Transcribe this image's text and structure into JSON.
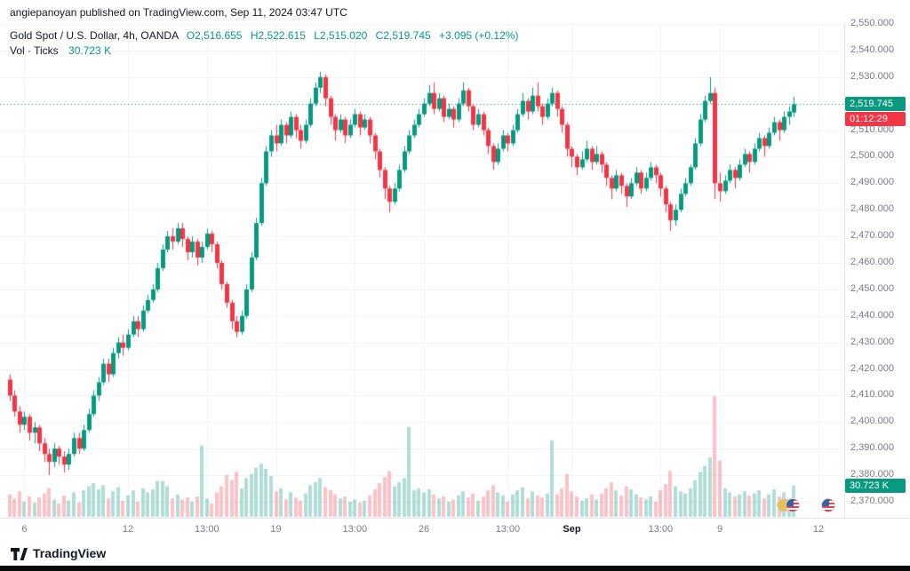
{
  "attribution": {
    "text": "angiepanoyan published on TradingView.com, Sep 11, 2024 03:47 UTC"
  },
  "legend": {
    "symbol": "Gold Spot / U.S. Dollar, 4h, OANDA",
    "o": "O2,516.655",
    "h": "H2,522.615",
    "l": "L2,515.020",
    "c": "C2,519.745",
    "change": "+3.095 (+0.12%)",
    "volume_label": "Vol · Ticks",
    "volume_value": "30.723 K"
  },
  "last_price": {
    "value": 2519.745,
    "label": "2,519.745",
    "countdown": "01:12:29"
  },
  "volume_badge": {
    "label": "30.723 K",
    "value": 30.723
  },
  "footer": {
    "brand": "TradingView"
  },
  "colors": {
    "up": "#089981",
    "down": "#f23645",
    "vol_up": "rgba(8,153,129,0.32)",
    "vol_down": "rgba(242,54,69,0.30)",
    "grid": "#f0f3fa",
    "axis_text": "#787b86",
    "text": "#131722",
    "badge_price_bg": "#089981",
    "badge_countdown_bg": "#f23645",
    "badge_volume_bg": "#089981"
  },
  "chart_data": {
    "type": "candlestick",
    "symbol": "Gold Spot / U.S. Dollar",
    "timeframe": "4h",
    "exchange": "OANDA",
    "title": "Gold Spot / U.S. Dollar, 4h, OANDA",
    "last": {
      "open": 2516.655,
      "high": 2522.615,
      "low": 2515.02,
      "close": 2519.745,
      "change": 3.095,
      "change_pct": 0.12
    },
    "last_volume_ticks_k": 30.723,
    "ylim": [
      2365,
      2553
    ],
    "grid": true,
    "candle_format": [
      "open",
      "high",
      "low",
      "close",
      "volume_k_ticks"
    ],
    "price_ticks": [
      {
        "v": 2550,
        "label": "2,550.000"
      },
      {
        "v": 2540,
        "label": "2,540.000"
      },
      {
        "v": 2530,
        "label": "2,530.000"
      },
      {
        "v": 2520,
        "label": "2,520.000"
      },
      {
        "v": 2510,
        "label": "2,510.000"
      },
      {
        "v": 2500,
        "label": "2,500.000"
      },
      {
        "v": 2490,
        "label": "2,490.000"
      },
      {
        "v": 2480,
        "label": "2,480.000"
      },
      {
        "v": 2470,
        "label": "2,470.000"
      },
      {
        "v": 2460,
        "label": "2,460.000"
      },
      {
        "v": 2450,
        "label": "2,450.000"
      },
      {
        "v": 2440,
        "label": "2,440.000"
      },
      {
        "v": 2430,
        "label": "2,430.000"
      },
      {
        "v": 2420,
        "label": "2,420.000"
      },
      {
        "v": 2410,
        "label": "2,410.000"
      },
      {
        "v": 2400,
        "label": "2,400.000"
      },
      {
        "v": 2390,
        "label": "2,390.000"
      },
      {
        "v": 2380,
        "label": "2,380.000"
      },
      {
        "v": 2370,
        "label": "2,370.000"
      }
    ],
    "time_ticks": [
      {
        "i": 3,
        "label": "6"
      },
      {
        "i": 24,
        "label": "12"
      },
      {
        "i": 40,
        "label": "13:00"
      },
      {
        "i": 54,
        "label": "19"
      },
      {
        "i": 70,
        "label": "13:00"
      },
      {
        "i": 84,
        "label": "26"
      },
      {
        "i": 101,
        "label": "13:00"
      },
      {
        "i": 114,
        "label": "Sep",
        "strong": true
      },
      {
        "i": 132,
        "label": "13:00"
      },
      {
        "i": 144,
        "label": "9"
      },
      {
        "i": 164,
        "label": "12"
      }
    ],
    "candles": [
      [
        2416,
        2418,
        2408,
        2410,
        22
      ],
      [
        2410,
        2412,
        2402,
        2404,
        18
      ],
      [
        2404,
        2406,
        2396,
        2399,
        25
      ],
      [
        2399,
        2404,
        2397,
        2402,
        15
      ],
      [
        2402,
        2403,
        2393,
        2396,
        20
      ],
      [
        2396,
        2400,
        2392,
        2398,
        14
      ],
      [
        2398,
        2399,
        2389,
        2392,
        19
      ],
      [
        2392,
        2394,
        2385,
        2388,
        23
      ],
      [
        2388,
        2390,
        2380,
        2385,
        28
      ],
      [
        2385,
        2392,
        2383,
        2390,
        17
      ],
      [
        2390,
        2391,
        2384,
        2387,
        13
      ],
      [
        2387,
        2389,
        2381,
        2384,
        21
      ],
      [
        2384,
        2390,
        2382,
        2388,
        16
      ],
      [
        2388,
        2396,
        2387,
        2394,
        24
      ],
      [
        2394,
        2396,
        2388,
        2390,
        14
      ],
      [
        2390,
        2399,
        2389,
        2397,
        26
      ],
      [
        2397,
        2405,
        2396,
        2403,
        30
      ],
      [
        2403,
        2412,
        2402,
        2410,
        33
      ],
      [
        2410,
        2417,
        2408,
        2415,
        27
      ],
      [
        2415,
        2424,
        2414,
        2422,
        31
      ],
      [
        2422,
        2424,
        2415,
        2418,
        18
      ],
      [
        2418,
        2428,
        2417,
        2426,
        25
      ],
      [
        2426,
        2432,
        2424,
        2430,
        29
      ],
      [
        2430,
        2433,
        2425,
        2428,
        16
      ],
      [
        2428,
        2435,
        2427,
        2433,
        21
      ],
      [
        2433,
        2440,
        2432,
        2438,
        26
      ],
      [
        2438,
        2440,
        2432,
        2435,
        15
      ],
      [
        2435,
        2444,
        2434,
        2442,
        28
      ],
      [
        2442,
        2448,
        2441,
        2446,
        24
      ],
      [
        2446,
        2452,
        2445,
        2450,
        27
      ],
      [
        2450,
        2460,
        2449,
        2458,
        35
      ],
      [
        2458,
        2467,
        2457,
        2465,
        35
      ],
      [
        2465,
        2472,
        2464,
        2470,
        30
      ],
      [
        2470,
        2473,
        2465,
        2468,
        18
      ],
      [
        2468,
        2475,
        2467,
        2473,
        22
      ],
      [
        2473,
        2475,
        2466,
        2469,
        17
      ],
      [
        2469,
        2470,
        2461,
        2464,
        19
      ],
      [
        2464,
        2470,
        2462,
        2468,
        15
      ],
      [
        2468,
        2469,
        2459,
        2462,
        20
      ],
      [
        2462,
        2468,
        2460,
        2466,
        70
      ],
      [
        2466,
        2473,
        2465,
        2471,
        18
      ],
      [
        2471,
        2472,
        2464,
        2467,
        13
      ],
      [
        2467,
        2468,
        2458,
        2460,
        24
      ],
      [
        2460,
        2461,
        2450,
        2452,
        30
      ],
      [
        2452,
        2453,
        2443,
        2445,
        41
      ],
      [
        2445,
        2446,
        2435,
        2438,
        36
      ],
      [
        2438,
        2440,
        2432,
        2434,
        44
      ],
      [
        2434,
        2442,
        2433,
        2440,
        28
      ],
      [
        2440,
        2452,
        2439,
        2450,
        38
      ],
      [
        2450,
        2464,
        2449,
        2462,
        42
      ],
      [
        2462,
        2477,
        2461,
        2475,
        48
      ],
      [
        2475,
        2492,
        2474,
        2490,
        52
      ],
      [
        2490,
        2504,
        2489,
        2502,
        47
      ],
      [
        2502,
        2510,
        2500,
        2508,
        40
      ],
      [
        2508,
        2512,
        2502,
        2505,
        25
      ],
      [
        2505,
        2514,
        2504,
        2512,
        28
      ],
      [
        2512,
        2513,
        2505,
        2508,
        17
      ],
      [
        2508,
        2517,
        2507,
        2515,
        24
      ],
      [
        2515,
        2516,
        2507,
        2510,
        19
      ],
      [
        2510,
        2512,
        2503,
        2506,
        16
      ],
      [
        2506,
        2514,
        2505,
        2512,
        23
      ],
      [
        2512,
        2522,
        2511,
        2520,
        31
      ],
      [
        2520,
        2528,
        2519,
        2526,
        34
      ],
      [
        2526,
        2532,
        2524,
        2530,
        38
      ],
      [
        2530,
        2531,
        2519,
        2522,
        29
      ],
      [
        2522,
        2523,
        2512,
        2515,
        26
      ],
      [
        2515,
        2516,
        2506,
        2510,
        22
      ],
      [
        2510,
        2516,
        2509,
        2514,
        18
      ],
      [
        2514,
        2515,
        2505,
        2508,
        20
      ],
      [
        2508,
        2514,
        2507,
        2512,
        15
      ],
      [
        2512,
        2518,
        2511,
        2516,
        17
      ],
      [
        2516,
        2517,
        2508,
        2511,
        14
      ],
      [
        2511,
        2516,
        2510,
        2514,
        16
      ],
      [
        2514,
        2515,
        2505,
        2508,
        21
      ],
      [
        2508,
        2509,
        2499,
        2502,
        27
      ],
      [
        2502,
        2503,
        2492,
        2495,
        33
      ],
      [
        2495,
        2496,
        2484,
        2488,
        39
      ],
      [
        2488,
        2489,
        2479,
        2483,
        45
      ],
      [
        2483,
        2490,
        2482,
        2488,
        30
      ],
      [
        2488,
        2497,
        2487,
        2495,
        34
      ],
      [
        2495,
        2504,
        2494,
        2502,
        38
      ],
      [
        2502,
        2510,
        2501,
        2508,
        88
      ],
      [
        2508,
        2514,
        2507,
        2512,
        26
      ],
      [
        2512,
        2518,
        2511,
        2516,
        28
      ],
      [
        2516,
        2522,
        2515,
        2520,
        24
      ],
      [
        2520,
        2527,
        2519,
        2524,
        27
      ],
      [
        2524,
        2528,
        2516,
        2518,
        22
      ],
      [
        2518,
        2524,
        2517,
        2522,
        18
      ],
      [
        2522,
        2523,
        2513,
        2515,
        20
      ],
      [
        2515,
        2520,
        2514,
        2518,
        15
      ],
      [
        2518,
        2519,
        2511,
        2514,
        17
      ],
      [
        2514,
        2522,
        2513,
        2520,
        21
      ],
      [
        2520,
        2528,
        2519,
        2525,
        25
      ],
      [
        2525,
        2526,
        2517,
        2519,
        19
      ],
      [
        2519,
        2520,
        2510,
        2512,
        23
      ],
      [
        2512,
        2518,
        2511,
        2516,
        16
      ],
      [
        2516,
        2517,
        2508,
        2510,
        20
      ],
      [
        2510,
        2511,
        2501,
        2504,
        26
      ],
      [
        2504,
        2505,
        2495,
        2498,
        31
      ],
      [
        2498,
        2505,
        2497,
        2503,
        24
      ],
      [
        2503,
        2510,
        2502,
        2508,
        21
      ],
      [
        2508,
        2509,
        2502,
        2505,
        15
      ],
      [
        2505,
        2512,
        2504,
        2510,
        22
      ],
      [
        2510,
        2518,
        2509,
        2516,
        26
      ],
      [
        2516,
        2524,
        2515,
        2521,
        29
      ],
      [
        2521,
        2522,
        2514,
        2517,
        18
      ],
      [
        2517,
        2526,
        2516,
        2523,
        25
      ],
      [
        2523,
        2528,
        2517,
        2519,
        21
      ],
      [
        2519,
        2520,
        2512,
        2515,
        19
      ],
      [
        2515,
        2522,
        2514,
        2520,
        23
      ],
      [
        2520,
        2526,
        2519,
        2524,
        75
      ],
      [
        2524,
        2525,
        2515,
        2518,
        22
      ],
      [
        2518,
        2519,
        2509,
        2512,
        28
      ],
      [
        2512,
        2513,
        2500,
        2503,
        42
      ],
      [
        2503,
        2504,
        2496,
        2500,
        25
      ],
      [
        2500,
        2501,
        2493,
        2496,
        20
      ],
      [
        2496,
        2502,
        2495,
        2499,
        16
      ],
      [
        2499,
        2506,
        2498,
        2503,
        18
      ],
      [
        2503,
        2504,
        2495,
        2498,
        22
      ],
      [
        2498,
        2504,
        2497,
        2501,
        17
      ],
      [
        2501,
        2502,
        2494,
        2497,
        23
      ],
      [
        2497,
        2498,
        2489,
        2492,
        28
      ],
      [
        2492,
        2493,
        2484,
        2488,
        34
      ],
      [
        2488,
        2495,
        2487,
        2493,
        26
      ],
      [
        2493,
        2494,
        2486,
        2489,
        21
      ],
      [
        2489,
        2490,
        2481,
        2485,
        30
      ],
      [
        2485,
        2492,
        2484,
        2490,
        27
      ],
      [
        2490,
        2496,
        2489,
        2494,
        22
      ],
      [
        2494,
        2495,
        2486,
        2488,
        19
      ],
      [
        2488,
        2494,
        2487,
        2492,
        17
      ],
      [
        2492,
        2498,
        2491,
        2496,
        20
      ],
      [
        2496,
        2497,
        2490,
        2493,
        15
      ],
      [
        2493,
        2494,
        2485,
        2488,
        26
      ],
      [
        2488,
        2489,
        2479,
        2482,
        32
      ],
      [
        2482,
        2483,
        2472,
        2476,
        45
      ],
      [
        2476,
        2482,
        2474,
        2480,
        30
      ],
      [
        2480,
        2488,
        2479,
        2486,
        25
      ],
      [
        2486,
        2492,
        2485,
        2490,
        23
      ],
      [
        2490,
        2497,
        2489,
        2496,
        28
      ],
      [
        2496,
        2507,
        2495,
        2505,
        36
      ],
      [
        2505,
        2516,
        2504,
        2514,
        44
      ],
      [
        2514,
        2523,
        2513,
        2521,
        50
      ],
      [
        2521,
        2530,
        2520,
        2524,
        58
      ],
      [
        2524,
        2526,
        2484,
        2490,
        118
      ],
      [
        2490,
        2494,
        2483,
        2487,
        55
      ],
      [
        2487,
        2493,
        2486,
        2491,
        28
      ],
      [
        2491,
        2497,
        2490,
        2495,
        24
      ],
      [
        2495,
        2496,
        2488,
        2492,
        20
      ],
      [
        2492,
        2499,
        2491,
        2497,
        22
      ],
      [
        2497,
        2503,
        2496,
        2501,
        25
      ],
      [
        2501,
        2502,
        2494,
        2498,
        21
      ],
      [
        2498,
        2505,
        2497,
        2503,
        23
      ],
      [
        2503,
        2509,
        2502,
        2507,
        26
      ],
      [
        2507,
        2508,
        2500,
        2504,
        18
      ],
      [
        2504,
        2511,
        2503,
        2509,
        22
      ],
      [
        2509,
        2515,
        2508,
        2513,
        27
      ],
      [
        2513,
        2514,
        2506,
        2510,
        20
      ],
      [
        2510,
        2517,
        2509,
        2515,
        24
      ],
      [
        2515,
        2519,
        2512,
        2517,
        18
      ],
      [
        2516.655,
        2522.615,
        2515.02,
        2519.745,
        30.723
      ]
    ]
  }
}
